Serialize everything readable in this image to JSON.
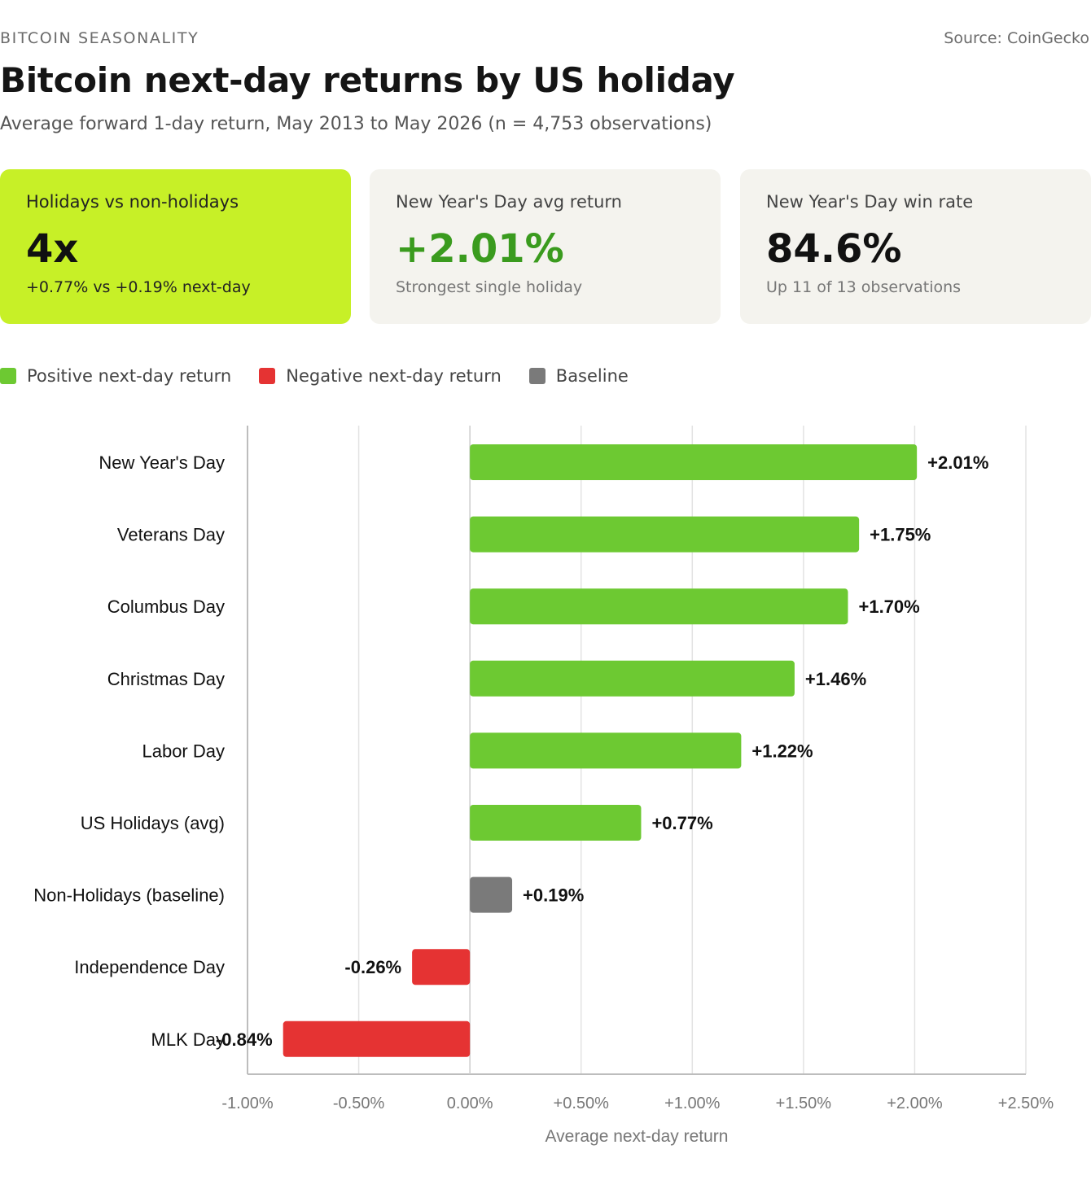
{
  "header": {
    "eyebrow": "BITCOIN SEASONALITY",
    "source": "Source: CoinGecko",
    "title": "Bitcoin next-day returns by US holiday",
    "subtitle": "Average forward 1-day return, May 2013 to May 2026 (n = 4,753 observations)"
  },
  "cards": [
    {
      "label": "Holidays vs non-holidays",
      "value": "4x",
      "sub": "+0.77% vs +0.19% next-day",
      "value_color": "#111111"
    },
    {
      "label": "New Year's Day avg return",
      "value": "+2.01%",
      "sub": "Strongest single holiday",
      "value_color": "#3a9b1e"
    },
    {
      "label": "New Year's Day win rate",
      "value": "84.6%",
      "sub": "Up 11 of 13 observations",
      "value_color": "#111111"
    }
  ],
  "legend": [
    {
      "label": "Positive next-day return",
      "color": "#6dc932"
    },
    {
      "label": "Negative next-day return",
      "color": "#e53333"
    },
    {
      "label": "Baseline",
      "color": "#7a7a7a"
    }
  ],
  "colors": {
    "positive": "#6dc932",
    "negative": "#e53333",
    "baseline": "#7a7a7a",
    "grid": "#e3e3e3",
    "axis": "#bdbdbd"
  },
  "chart_data": {
    "type": "bar",
    "orientation": "horizontal",
    "categories": [
      "New Year's Day",
      "Veterans Day",
      "Columbus Day",
      "Christmas Day",
      "Labor Day",
      "US Holidays (avg)",
      "Non-Holidays (baseline)",
      "Independence Day",
      "MLK Day"
    ],
    "values": [
      2.01,
      1.75,
      1.7,
      1.46,
      1.22,
      0.77,
      0.19,
      -0.26,
      -0.84
    ],
    "kinds": [
      "positive",
      "positive",
      "positive",
      "positive",
      "positive",
      "positive",
      "baseline",
      "negative",
      "negative"
    ],
    "data_labels": [
      "+2.01%",
      "+1.75%",
      "+1.70%",
      "+1.46%",
      "+1.22%",
      "+0.77%",
      "+0.19%",
      "-0.26%",
      "-0.84%"
    ],
    "xticks": [
      -1.0,
      -0.5,
      0.0,
      0.5,
      1.0,
      1.5,
      2.0,
      2.5
    ],
    "xtick_labels": [
      "-1.00%",
      "-0.50%",
      "0.00%",
      "+0.50%",
      "+1.00%",
      "+1.50%",
      "+2.00%",
      "+2.50%"
    ],
    "xlim": [
      -1.0,
      2.5
    ],
    "xlabel": "Average next-day return",
    "grid": "vertical"
  }
}
